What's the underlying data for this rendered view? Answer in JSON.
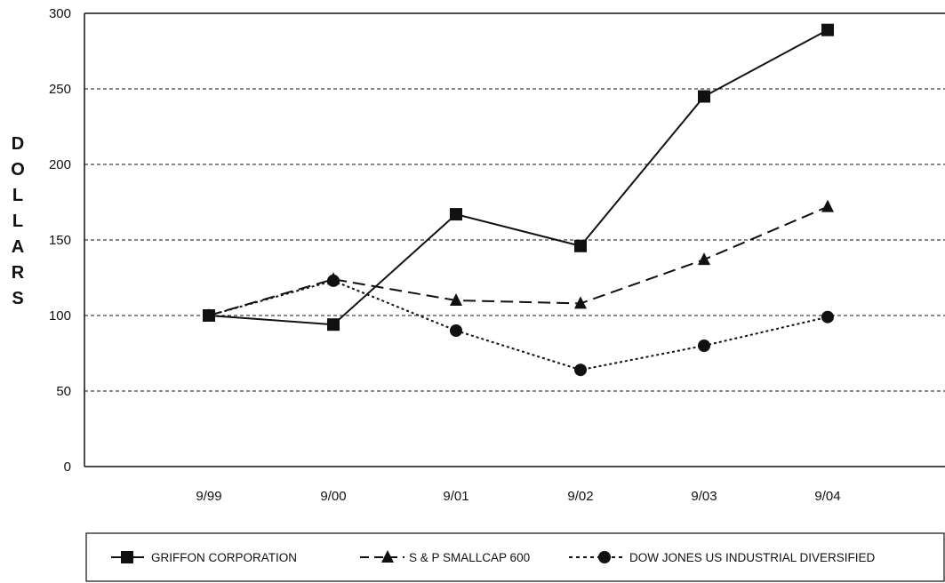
{
  "chart_data": {
    "type": "line",
    "title": "",
    "xlabel": "",
    "ylabel": "DOLLARS",
    "categories": [
      "9/99",
      "9/00",
      "9/01",
      "9/02",
      "9/03",
      "9/04"
    ],
    "ylim": [
      0,
      300
    ],
    "yticks": [
      0,
      50,
      100,
      150,
      200,
      250,
      300
    ],
    "grid": "horizontal dashed",
    "legend_position": "bottom",
    "series": [
      {
        "name": "GRIFFON CORPORATION",
        "marker": "square",
        "line_style": "solid",
        "color": "#111111",
        "values": [
          100,
          94,
          167,
          146,
          245,
          289
        ]
      },
      {
        "name": "S & P SMALLCAP 600",
        "marker": "triangle",
        "line_style": "dashed",
        "color": "#111111",
        "values": [
          100,
          124,
          110,
          108,
          137,
          172
        ]
      },
      {
        "name": "DOW JONES US INDUSTRIAL DIVERSIFIED",
        "marker": "circle",
        "line_style": "dotted",
        "color": "#111111",
        "values": [
          100,
          123,
          90,
          64,
          80,
          99
        ]
      }
    ]
  }
}
